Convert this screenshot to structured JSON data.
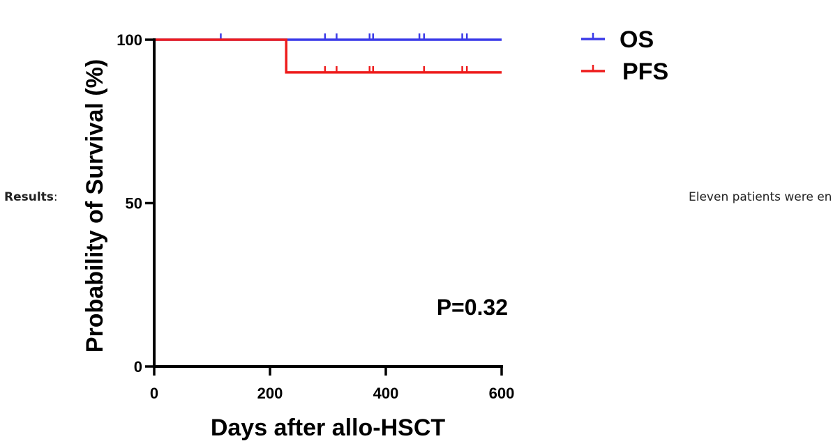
{
  "text": {
    "results_label": "Results",
    "results_colon": ":",
    "body_snippet": "Eleven patients were en"
  },
  "chart_data": {
    "type": "line",
    "step": true,
    "xlabel": "Days after allo-HSCT",
    "ylabel": "Probability of Survival (%)",
    "xlim": [
      0,
      600
    ],
    "ylim": [
      0,
      100
    ],
    "xticks": [
      0,
      200,
      400,
      600
    ],
    "yticks": [
      0,
      50,
      100
    ],
    "grid": false,
    "legend_position": "top-right",
    "annotation": "P=0.32",
    "series": [
      {
        "name": "OS",
        "color": "#3a3ae8",
        "points": [
          [
            0,
            100
          ],
          [
            600,
            100
          ]
        ],
        "censor_x": [
          115,
          295,
          315,
          372,
          378,
          458,
          466,
          532,
          540
        ]
      },
      {
        "name": "PFS",
        "color": "#ee1c1c",
        "points": [
          [
            0,
            100
          ],
          [
            228,
            100
          ],
          [
            228,
            90
          ],
          [
            600,
            90
          ]
        ],
        "censor_x": [
          295,
          315,
          372,
          378,
          466,
          532,
          540
        ]
      }
    ]
  }
}
